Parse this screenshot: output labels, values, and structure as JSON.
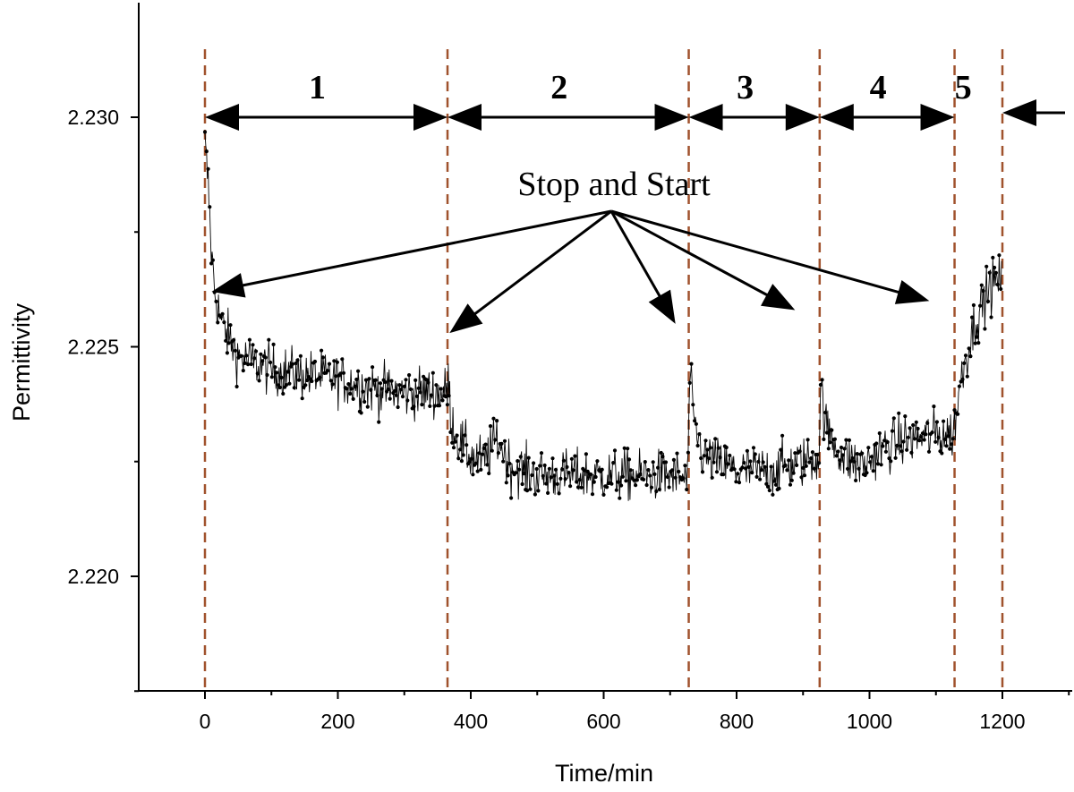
{
  "chart_data": {
    "type": "scatter",
    "xlabel": "Time/min",
    "ylabel": "Permittivity",
    "xlim": [
      -100,
      1300
    ],
    "ylim": [
      2.2175,
      2.2325
    ],
    "x_ticks": [
      0,
      200,
      400,
      600,
      800,
      1000,
      1200
    ],
    "x_tick_labels": [
      "0",
      "200",
      "400",
      "600",
      "800",
      "1000",
      "1200"
    ],
    "y_ticks": [
      2.22,
      2.225,
      2.23
    ],
    "y_tick_labels": [
      "2.220",
      "2.225",
      "2.230"
    ],
    "grid": false,
    "boundaries": [
      0,
      365,
      728,
      925,
      1128,
      1200
    ],
    "segments": [
      {
        "label": "1",
        "from": 0,
        "to": 365
      },
      {
        "label": "2",
        "from": 365,
        "to": 728
      },
      {
        "label": "3",
        "from": 728,
        "to": 925
      },
      {
        "label": "4",
        "from": 925,
        "to": 1128
      },
      {
        "label": "5",
        "from": 1128,
        "to": 1200
      }
    ],
    "annotation": {
      "text": "Stop and Start",
      "targets": [
        {
          "x": 10,
          "y": 2.2262
        },
        {
          "x": 368,
          "y": 2.2253
        },
        {
          "x": 708,
          "y": 2.2255
        },
        {
          "x": 888,
          "y": 2.2258
        },
        {
          "x": 1090,
          "y": 2.226
        }
      ]
    },
    "series": [
      {
        "trend": [
          [
            0,
            2.2294
          ],
          [
            5,
            2.2285
          ],
          [
            10,
            2.227
          ],
          [
            15,
            2.2262
          ],
          [
            25,
            2.2255
          ],
          [
            50,
            2.2248
          ],
          [
            100,
            2.2245
          ],
          [
            150,
            2.2244
          ],
          [
            200,
            2.2243
          ],
          [
            250,
            2.2241
          ],
          [
            300,
            2.224
          ],
          [
            364,
            2.224
          ],
          [
            366,
            2.2243
          ],
          [
            370,
            2.2235
          ],
          [
            380,
            2.223
          ],
          [
            400,
            2.2226
          ],
          [
            420,
            2.2225
          ],
          [
            440,
            2.223
          ],
          [
            460,
            2.2224
          ],
          [
            500,
            2.2222
          ],
          [
            550,
            2.2222
          ],
          [
            600,
            2.2222
          ],
          [
            650,
            2.2222
          ],
          [
            700,
            2.2222
          ],
          [
            727,
            2.2221
          ],
          [
            729,
            2.2245
          ],
          [
            735,
            2.2234
          ],
          [
            750,
            2.2226
          ],
          [
            800,
            2.2223
          ],
          [
            850,
            2.2223
          ],
          [
            900,
            2.2225
          ],
          [
            924,
            2.2226
          ],
          [
            926,
            2.2242
          ],
          [
            935,
            2.2232
          ],
          [
            960,
            2.2226
          ],
          [
            990,
            2.2224
          ],
          [
            1020,
            2.2228
          ],
          [
            1060,
            2.223
          ],
          [
            1100,
            2.2231
          ],
          [
            1127,
            2.2231
          ],
          [
            1128,
            2.2233
          ],
          [
            1140,
            2.2245
          ],
          [
            1160,
            2.2256
          ],
          [
            1180,
            2.2263
          ],
          [
            1200,
            2.2265
          ]
        ],
        "noise_amplitude": 0.0005,
        "sample_step": 1.2
      }
    ]
  }
}
